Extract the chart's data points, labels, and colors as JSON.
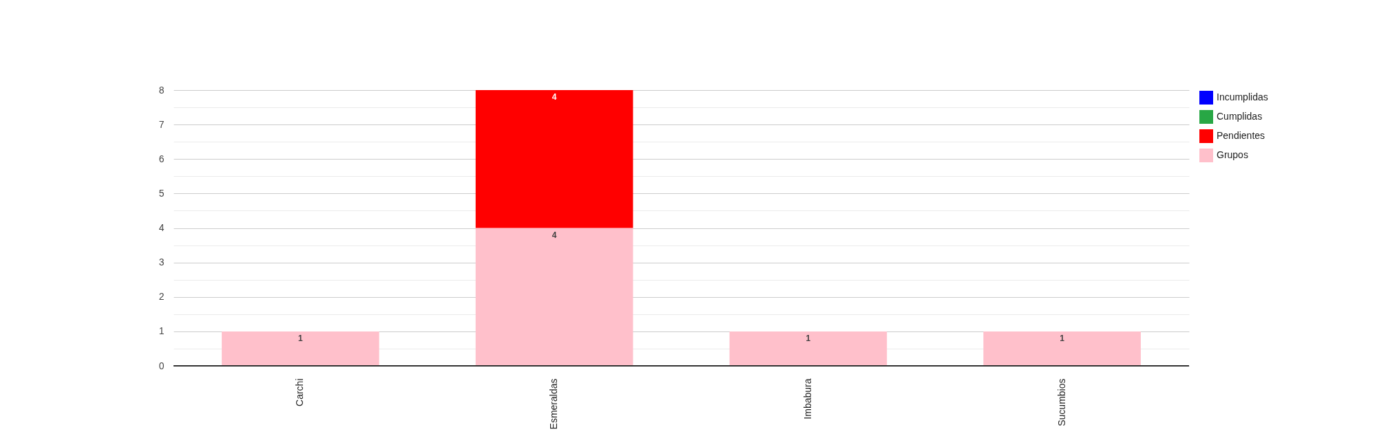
{
  "chart_data": {
    "type": "bar",
    "stacked": true,
    "categories": [
      "Carchi",
      "Esmeraldas",
      "Imbabura",
      "Sucumbios"
    ],
    "series": [
      {
        "name": "Grupos",
        "color": "#ffc0cb",
        "values": [
          1,
          4,
          1,
          1
        ],
        "value_labels": [
          "1",
          "4",
          "1",
          "1"
        ]
      },
      {
        "name": "Pendientes",
        "color": "#ff0000",
        "values": [
          0,
          4,
          0,
          0
        ],
        "value_labels": [
          null,
          "4",
          null,
          null
        ]
      },
      {
        "name": "Cumplidas",
        "color": "#28a745",
        "values": [
          0,
          0,
          0,
          0
        ],
        "value_labels": [
          null,
          null,
          null,
          null
        ]
      },
      {
        "name": "Incumplidas",
        "color": "#0000ff",
        "values": [
          0,
          0,
          0,
          0
        ],
        "value_labels": [
          null,
          null,
          null,
          null
        ]
      }
    ],
    "ylim": [
      0,
      8
    ],
    "yticks": [
      0,
      1,
      2,
      3,
      4,
      5,
      6,
      7,
      8
    ],
    "grid": true,
    "legend": "top right"
  }
}
